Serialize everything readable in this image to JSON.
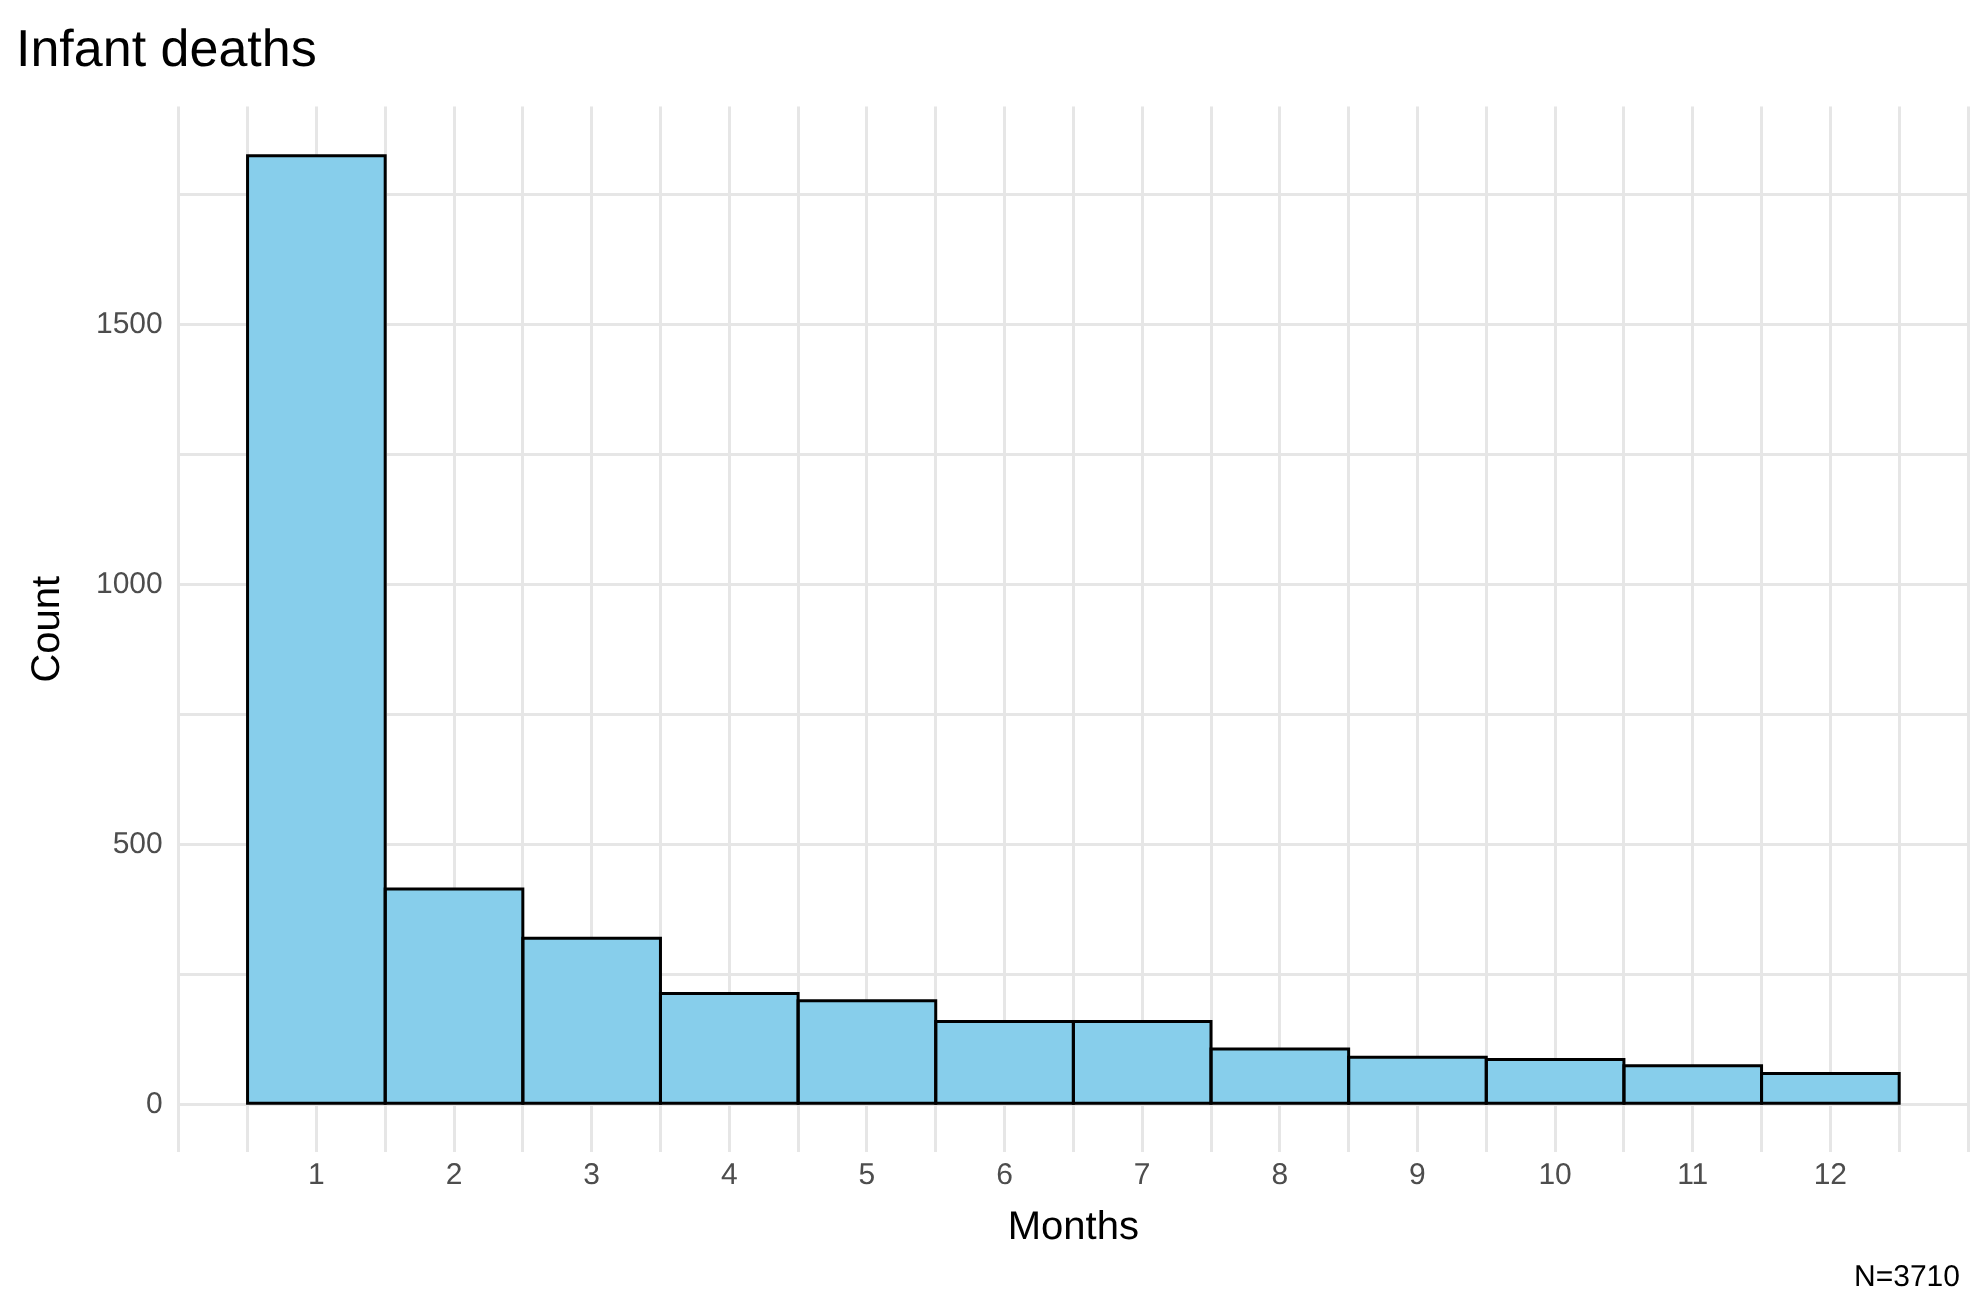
{
  "chart_data": {
    "type": "histogram",
    "title": "Infant deaths",
    "xlabel": "Months",
    "ylabel": "Count",
    "bins": [
      0.5,
      1.5,
      2.5,
      3.5,
      4.5,
      5.5,
      6.5,
      7.5,
      8.5,
      9.5,
      10.5,
      11.5,
      12.5
    ],
    "values": [
      1825,
      415,
      320,
      214,
      200,
      160,
      160,
      107,
      91,
      87,
      75,
      60
    ],
    "color": "#87ceeb",
    "xlim": [
      0,
      13
    ],
    "xticks": [
      {
        "value": 0,
        "label": null
      },
      {
        "value": 0.5,
        "label": null
      },
      1,
      {
        "value": 1.5,
        "label": null
      },
      2,
      {
        "value": 2.5,
        "label": null
      },
      3,
      {
        "value": 3.5,
        "label": null
      },
      4,
      {
        "value": 4.5,
        "label": null
      },
      5,
      {
        "value": 5.5,
        "label": null
      },
      6,
      {
        "value": 6.5,
        "label": null
      },
      7,
      {
        "value": 7.5,
        "label": null
      },
      8,
      {
        "value": 8.5,
        "label": null
      },
      9,
      {
        "value": 9.5,
        "label": null
      },
      10,
      {
        "value": 10.5,
        "label": null
      },
      11,
      {
        "value": 11.5,
        "label": null
      },
      12,
      {
        "value": 12.5,
        "label": null
      },
      {
        "value": 13,
        "label": null
      }
    ],
    "ylim": [
      -91,
      1920
    ],
    "yticks": [
      0,
      {
        "value": 250,
        "label": null
      },
      500,
      {
        "value": 750,
        "label": null
      },
      1000,
      {
        "value": 1250,
        "label": null
      },
      1500,
      {
        "value": 1750,
        "label": null
      }
    ],
    "grid": true,
    "legend": false,
    "annotations": [
      "N=3710"
    ]
  }
}
